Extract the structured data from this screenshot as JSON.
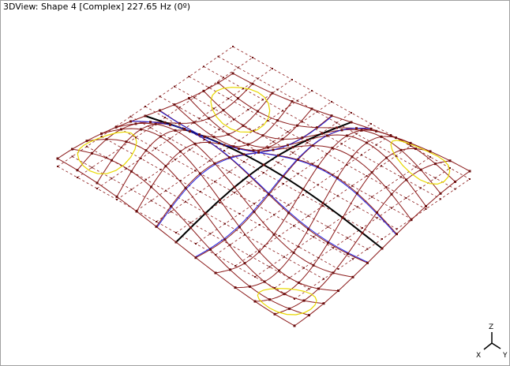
{
  "view_title": "3DView: Shape 4 [Complex] 227.65 Hz (0º)",
  "axis_labels": {
    "z": "Z",
    "x": "X",
    "y": "Y"
  }
}
